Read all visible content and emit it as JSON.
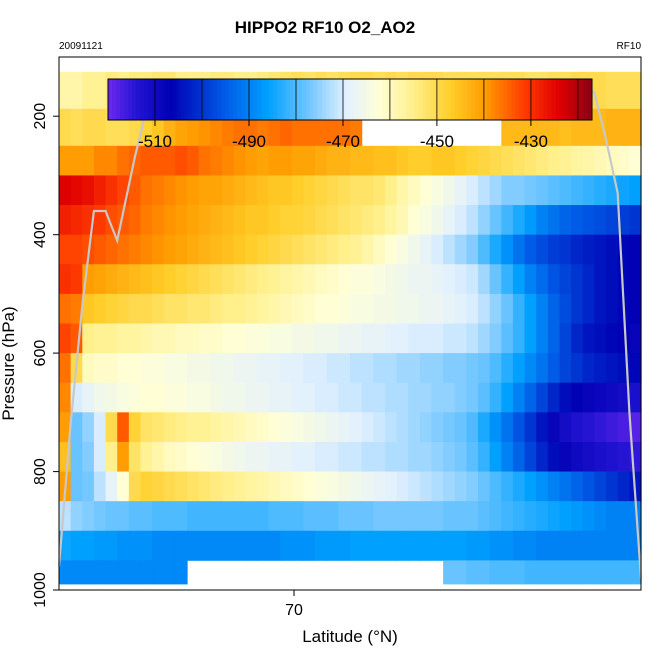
{
  "chart_data": {
    "type": "heatmap",
    "title": "HIPPO2 RF10 O2_AO2",
    "date_label": "20091121",
    "flight_label": "RF10",
    "xlabel": "Latitude (°N)",
    "ylabel": "Pressure (hPa)",
    "x_ticks": [
      70
    ],
    "y_ticks": [
      200,
      400,
      600,
      800,
      1000
    ],
    "ylim": [
      1000,
      100
    ],
    "y_reversed": true,
    "colorbar": {
      "ticks": [
        -510,
        -490,
        -470,
        -450,
        -430
      ],
      "range": [
        -520,
        -417
      ],
      "placement": "top-inside"
    },
    "pressure_rows": [
      {
        "p": 150,
        "values": [
          -458,
          -458,
          -456,
          -456,
          -454,
          -455,
          -454,
          -454,
          -453,
          -453,
          -455,
          -455,
          -455,
          -454,
          -454,
          -455,
          -455,
          -454,
          -453,
          -452,
          -451,
          -452,
          -451,
          -452,
          -451,
          -450,
          -450,
          -451,
          -450,
          -451,
          -450,
          -450,
          -450,
          -451,
          -451,
          -451,
          -451,
          -451,
          -451,
          -451,
          -452,
          -452,
          -451,
          -451,
          -450,
          -450,
          -450,
          -451,
          -451,
          -451
        ]
      },
      {
        "p": 225,
        "values": [
          -450,
          -451,
          -450,
          -450,
          -451,
          -451,
          -450,
          -448,
          -446,
          -443,
          -441,
          -440,
          -439,
          -438,
          -437,
          -436,
          -436,
          -437,
          -436,
          -435,
          -436,
          -436,
          -436,
          -436,
          -436,
          -437,
          null,
          null,
          null,
          null,
          null,
          null,
          null,
          null,
          null,
          null,
          null,
          null,
          -444,
          -444,
          -444,
          -444,
          -444,
          -445,
          -444,
          -444,
          -444,
          -443,
          -443,
          -443
        ]
      },
      {
        "p": 275,
        "values": [
          -440,
          -440,
          -440,
          -438,
          -438,
          -436,
          -435,
          -434,
          -434,
          -434,
          -433,
          -434,
          -436,
          -437,
          -438,
          -439,
          -440,
          -441,
          -440,
          -440,
          -441,
          -441,
          -442,
          -443,
          -443,
          -444,
          -444,
          -445,
          -445,
          -446,
          -447,
          -447,
          -446,
          -446,
          -447,
          -448,
          -449,
          -450,
          -451,
          -452,
          -453,
          -454,
          -455,
          -456,
          -457,
          -458,
          -459,
          -460,
          -461,
          -462
        ]
      },
      {
        "p": 325,
        "values": [
          -424,
          -425,
          -426,
          -428,
          -430,
          -432,
          -434,
          -436,
          -437,
          -438,
          -439,
          -440,
          -441,
          -441,
          -442,
          -443,
          -444,
          -445,
          -446,
          -446,
          -447,
          -448,
          -449,
          -450,
          -451,
          -452,
          -452,
          -453,
          -455,
          -458,
          -460,
          -462,
          -464,
          -466,
          -468,
          -470,
          -472,
          -474,
          -476,
          -476,
          -477,
          -478,
          -479,
          -480,
          -481,
          -482,
          -483,
          -484,
          -485,
          -486
        ]
      },
      {
        "p": 375,
        "values": [
          -428,
          -429,
          -430,
          -431,
          -433,
          -434,
          -435,
          -437,
          -438,
          -439,
          -440,
          -441,
          -442,
          -443,
          -444,
          -445,
          -446,
          -446,
          -447,
          -448,
          -448,
          -449,
          -450,
          -451,
          -452,
          -453,
          -454,
          -455,
          -457,
          -459,
          -462,
          -464,
          -466,
          -468,
          -470,
          -472,
          -475,
          -478,
          -481,
          -484,
          -487,
          -490,
          -492,
          -494,
          -495,
          -496,
          -497,
          -498,
          -499,
          -500
        ]
      },
      {
        "p": 425,
        "values": [
          -432,
          -432,
          -433,
          -434,
          -435,
          -436,
          -437,
          -438,
          -439,
          -440,
          -441,
          -442,
          -443,
          -444,
          -445,
          -446,
          -447,
          -448,
          -449,
          -450,
          -451,
          -452,
          -453,
          -454,
          -455,
          -456,
          -458,
          -460,
          -462,
          -464,
          -466,
          -468,
          -470,
          -472,
          -474,
          -476,
          -480,
          -484,
          -488,
          -492,
          -495,
          -497,
          -499,
          -500,
          -502,
          -503,
          -504,
          -505,
          -506,
          -507
        ]
      },
      {
        "p": 475,
        "values": [
          -430,
          -431,
          -440,
          -441,
          -442,
          -443,
          -444,
          -445,
          -446,
          -447,
          -448,
          -449,
          -450,
          -451,
          -452,
          -453,
          -454,
          -455,
          -456,
          -457,
          -458,
          -459,
          -460,
          -461,
          -462,
          -463,
          -463,
          -464,
          -465,
          -466,
          -467,
          -467,
          -468,
          -469,
          -470,
          -471,
          -474,
          -478,
          -482,
          -486,
          -490,
          -493,
          -496,
          -498,
          -500,
          -502,
          -504,
          -505,
          -506,
          -507
        ]
      },
      {
        "p": 525,
        "values": [
          -436,
          -437,
          -446,
          -447,
          -448,
          -449,
          -450,
          -450,
          -451,
          -452,
          -452,
          -453,
          -453,
          -454,
          -455,
          -455,
          -456,
          -457,
          -458,
          -459,
          -460,
          -461,
          -462,
          -462,
          -463,
          -464,
          -464,
          -465,
          -465,
          -466,
          -466,
          -467,
          -467,
          -468,
          -469,
          -470,
          -472,
          -475,
          -478,
          -482,
          -486,
          -490,
          -494,
          -497,
          -500,
          -502,
          -504,
          -505,
          -506,
          -507
        ]
      },
      {
        "p": 575,
        "values": [
          -432,
          -434,
          -455,
          -456,
          -456,
          -457,
          -457,
          -458,
          -459,
          -459,
          -460,
          -460,
          -461,
          -461,
          -462,
          -462,
          -463,
          -463,
          -464,
          -464,
          -465,
          -465,
          -466,
          -466,
          -467,
          -467,
          -468,
          -468,
          -469,
          -469,
          -470,
          -470,
          -470,
          -471,
          -471,
          -472,
          -474,
          -476,
          -479,
          -482,
          -486,
          -490,
          -494,
          -498,
          -502,
          -504,
          -505,
          -506,
          -507,
          -508
        ]
      },
      {
        "p": 625,
        "values": [
          -436,
          -450,
          -460,
          -461,
          -461,
          -462,
          -462,
          -463,
          -463,
          -464,
          -464,
          -465,
          -465,
          -466,
          -466,
          -467,
          -467,
          -468,
          -468,
          -469,
          -469,
          -470,
          -470,
          -471,
          -471,
          -472,
          -472,
          -473,
          -473,
          -474,
          -474,
          -475,
          -475,
          -476,
          -476,
          -477,
          -478,
          -480,
          -483,
          -486,
          -489,
          -492,
          -495,
          -498,
          -500,
          -502,
          -503,
          -504,
          -505,
          -506
        ]
      },
      {
        "p": 675,
        "values": [
          -438,
          -470,
          -468,
          -466,
          -465,
          -464,
          -463,
          -462,
          -462,
          -463,
          -463,
          -464,
          -464,
          -465,
          -466,
          -466,
          -467,
          -467,
          -468,
          -468,
          -469,
          -469,
          -470,
          -470,
          -471,
          -471,
          -472,
          -472,
          -473,
          -473,
          -474,
          -474,
          -475,
          -475,
          -476,
          -477,
          -479,
          -482,
          -486,
          -490,
          -494,
          -498,
          -502,
          -505,
          -507,
          -508,
          -509,
          -510,
          -511,
          -512
        ]
      },
      {
        "p": 725,
        "values": [
          -440,
          -478,
          -475,
          -470,
          -450,
          -434,
          -448,
          -452,
          -453,
          -454,
          -455,
          -456,
          -456,
          -457,
          -458,
          -459,
          -460,
          -461,
          -462,
          -463,
          -464,
          -465,
          -466,
          -467,
          -468,
          -469,
          -470,
          -471,
          -472,
          -473,
          -474,
          -475,
          -476,
          -477,
          -478,
          -480,
          -484,
          -488,
          -492,
          -496,
          -500,
          -504,
          -508,
          -511,
          -513,
          -514,
          -515,
          -516,
          -517,
          -518
        ]
      },
      {
        "p": 775,
        "values": [
          -445,
          -478,
          -476,
          -470,
          -455,
          -440,
          -452,
          -456,
          -458,
          -460,
          -461,
          -462,
          -463,
          -464,
          -465,
          -466,
          -467,
          -467,
          -468,
          -468,
          -469,
          -469,
          -470,
          -470,
          -471,
          -471,
          -472,
          -472,
          -473,
          -473,
          -474,
          -474,
          -475,
          -476,
          -477,
          -479,
          -482,
          -486,
          -490,
          -494,
          -498,
          -502,
          -505,
          -508,
          -510,
          -511,
          -512,
          -513,
          -514,
          -515
        ]
      },
      {
        "p": 825,
        "values": [
          -440,
          -478,
          -477,
          -472,
          -468,
          -462,
          -450,
          -448,
          -449,
          -450,
          -451,
          -452,
          -453,
          -454,
          -455,
          -456,
          -457,
          -458,
          -459,
          -460,
          -461,
          -462,
          -463,
          -464,
          -465,
          -466,
          -467,
          -468,
          -469,
          -470,
          -471,
          -472,
          -473,
          -474,
          -475,
          -476,
          -478,
          -480,
          -482,
          -484,
          -486,
          -488,
          -490,
          -492,
          -494,
          -496,
          -498,
          -500,
          -502,
          -504
        ]
      },
      {
        "p": 875,
        "values": [
          -472,
          -475,
          -476,
          -477,
          -478,
          -478,
          -479,
          -479,
          -480,
          -480,
          -480,
          -481,
          -481,
          -481,
          -481,
          -481,
          -481,
          -481,
          -480,
          -480,
          -480,
          -479,
          -479,
          -479,
          -478,
          -478,
          -478,
          -477,
          -477,
          -477,
          -477,
          -477,
          -477,
          -478,
          -478,
          -478,
          -479,
          -480,
          -481,
          -482,
          -483,
          -484,
          -485,
          -486,
          -487,
          -488,
          -489,
          -490,
          -490,
          -490
        ]
      },
      {
        "p": 925,
        "values": [
          -485,
          -486,
          -486,
          -487,
          -487,
          -488,
          -488,
          -488,
          -489,
          -489,
          -489,
          -489,
          -489,
          -489,
          -489,
          -489,
          -489,
          -489,
          -489,
          -488,
          -488,
          -488,
          -487,
          -487,
          -487,
          -486,
          -486,
          -486,
          -486,
          -486,
          -486,
          -486,
          -486,
          -486,
          -486,
          -487,
          -487,
          -488,
          -488,
          -489,
          -489,
          -490,
          -490,
          -490,
          -490,
          -490,
          -490,
          -490,
          -490,
          -490
        ]
      },
      {
        "p": 975,
        "values": [
          -489,
          -489,
          -489,
          -489,
          -489,
          -489,
          -489,
          -489,
          -489,
          -489,
          -489,
          null,
          null,
          null,
          null,
          null,
          null,
          null,
          null,
          null,
          null,
          null,
          null,
          null,
          null,
          null,
          null,
          null,
          null,
          null,
          null,
          null,
          null,
          -478,
          -478,
          -479,
          -479,
          -480,
          -480,
          -480,
          -481,
          -481,
          -481,
          -481,
          -481,
          -481,
          -481,
          -481,
          -481,
          -481
        ]
      }
    ],
    "flight_track": {
      "x": [
        0.0,
        0.02,
        0.04,
        0.06,
        0.08,
        0.1,
        0.13,
        0.16,
        0.2,
        0.25,
        0.28,
        0.3,
        0.33,
        0.36,
        0.38,
        0.4,
        0.42,
        0.45,
        0.48,
        0.5,
        0.52,
        0.55,
        0.57,
        0.6,
        0.62,
        0.65,
        0.67,
        0.7,
        0.72,
        0.75,
        0.77,
        0.8,
        0.82,
        0.84,
        0.87,
        0.9,
        0.92,
        0.94,
        0.96,
        0.98,
        1.0
      ],
      "p": [
        960,
        720,
        520,
        360,
        360,
        410,
        270,
        150,
        150,
        150,
        150,
        150,
        150,
        150,
        150,
        150,
        150,
        150,
        150,
        150,
        150,
        150,
        150,
        150,
        150,
        150,
        150,
        150,
        150,
        150,
        150,
        150,
        150,
        150,
        150,
        150,
        160,
        240,
        330,
        700,
        980
      ]
    }
  }
}
